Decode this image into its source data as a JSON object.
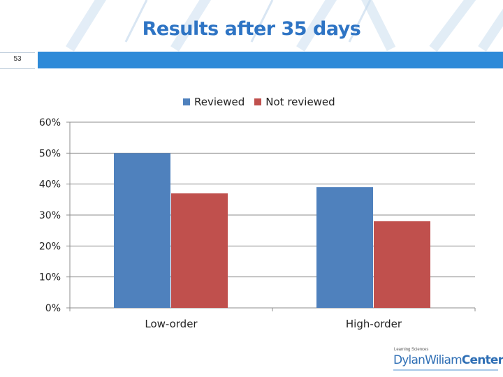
{
  "slide": {
    "title": "Results after 35 days",
    "number": "53"
  },
  "branding": {
    "tagline": "Learning Sciences",
    "name_part1": "DylanWiliam",
    "name_part2": "Center"
  },
  "colors": {
    "accent": "#2e8ad8",
    "title": "#2e74c4",
    "reviewed": "#4f81bd",
    "not_reviewed": "#c0504d"
  },
  "chart_data": {
    "type": "bar",
    "title": "",
    "xlabel": "",
    "ylabel": "",
    "categories": [
      "Low-order",
      "High-order"
    ],
    "series": [
      {
        "name": "Reviewed",
        "values": [
          50,
          39
        ],
        "color": "#4f81bd"
      },
      {
        "name": "Not reviewed",
        "values": [
          37,
          28
        ],
        "color": "#c0504d"
      }
    ],
    "ylim": [
      0,
      60
    ],
    "yticks": [
      0,
      10,
      20,
      30,
      40,
      50,
      60
    ],
    "ytick_labels": [
      "0%",
      "10%",
      "20%",
      "30%",
      "40%",
      "50%",
      "60%"
    ],
    "legend_position": "top-center",
    "grid": true
  }
}
